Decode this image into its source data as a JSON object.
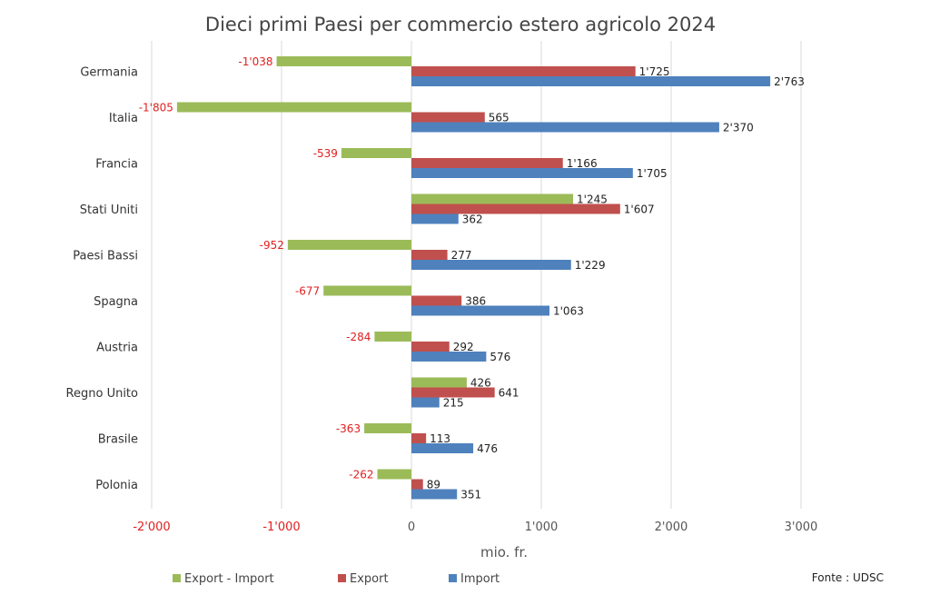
{
  "chart_data": {
    "type": "bar",
    "orientation": "horizontal",
    "title": "Dieci primi Paesi per commercio estero agricolo 2024",
    "xlabel": "mio. fr.",
    "ylabel": "",
    "xlim": [
      -2000,
      3000
    ],
    "xticks": [
      -2000,
      -1000,
      0,
      1000,
      2000,
      3000
    ],
    "xtick_labels": [
      "-2'000",
      "-1'000",
      "0",
      "1'000",
      "2'000",
      "3'000"
    ],
    "grid": "vertical",
    "legend": "bottom",
    "source": "Fonte : UDSC",
    "categories": [
      "Germania",
      "Italia",
      "Francia",
      "Stati Uniti",
      "Paesi Bassi",
      "Spagna",
      "Austria",
      "Regno Unito",
      "Brasile",
      "Polonia"
    ],
    "series": [
      {
        "name": "Export - Import",
        "color": "#9bbb59",
        "values": [
          -1038,
          -1805,
          -539,
          1245,
          -952,
          -677,
          -284,
          426,
          -363,
          -262
        ]
      },
      {
        "name": "Export",
        "color": "#c0504d",
        "values": [
          1725,
          565,
          1166,
          1607,
          277,
          386,
          292,
          641,
          113,
          89
        ]
      },
      {
        "name": "Import",
        "color": "#4f81bd",
        "values": [
          2763,
          2370,
          1705,
          362,
          1229,
          1063,
          576,
          215,
          476,
          351
        ]
      }
    ],
    "negative_label_color": "#e02020"
  }
}
